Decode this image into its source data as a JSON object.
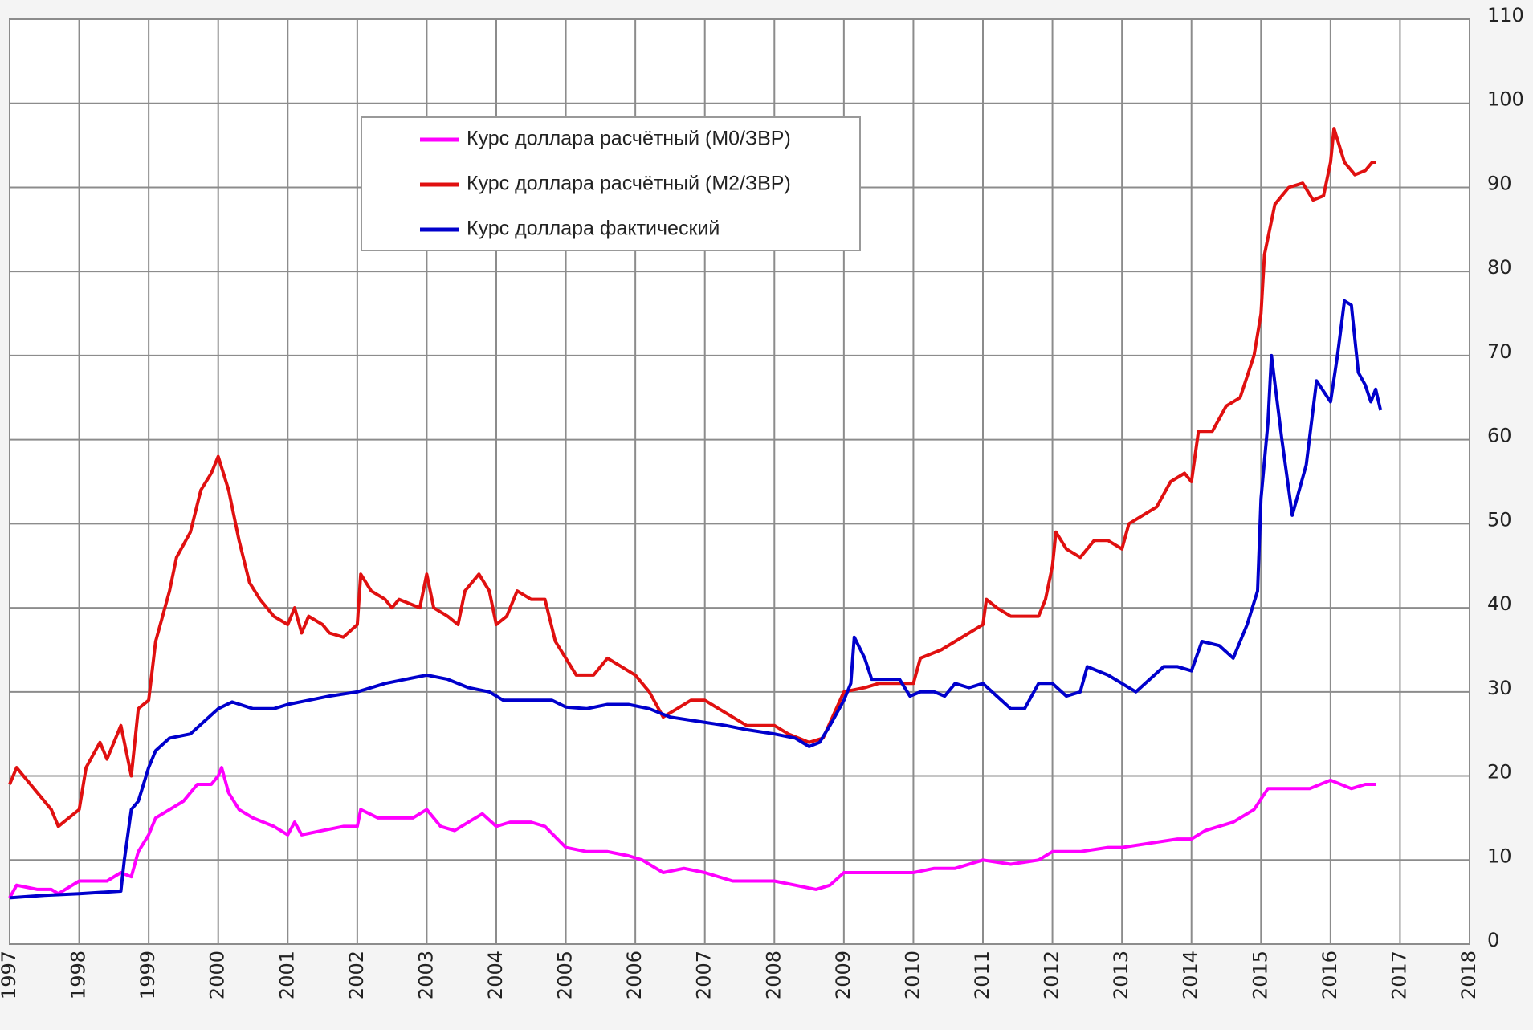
{
  "chart_data": {
    "type": "line",
    "grid": true,
    "y_axis_side": "right",
    "xlim": [
      1997,
      2018
    ],
    "xticks": [
      1997,
      1998,
      1999,
      2000,
      2001,
      2002,
      2003,
      2004,
      2005,
      2006,
      2007,
      2008,
      2009,
      2010,
      2011,
      2012,
      2013,
      2014,
      2015,
      2016,
      2017,
      2018
    ],
    "ylim": [
      0,
      110
    ],
    "yticks": [
      0,
      10,
      20,
      30,
      40,
      50,
      60,
      70,
      80,
      90,
      100,
      110
    ],
    "series": [
      {
        "name": "Курс доллара расчётный (М0/ЗВР)",
        "color": "#ff00ff",
        "x": [
          1997.0,
          1997.1,
          1997.4,
          1997.6,
          1997.7,
          1998.0,
          1998.2,
          1998.4,
          1998.6,
          1998.75,
          1998.85,
          1999.0,
          1999.1,
          1999.3,
          1999.5,
          1999.7,
          1999.9,
          2000.0,
          2000.05,
          2000.15,
          2000.3,
          2000.5,
          2000.8,
          2001.0,
          2001.1,
          2001.2,
          2001.5,
          2001.8,
          2002.0,
          2002.05,
          2002.3,
          2002.5,
          2002.8,
          2003.0,
          2003.2,
          2003.4,
          2003.6,
          2003.8,
          2004.0,
          2004.2,
          2004.5,
          2004.7,
          2005.0,
          2005.3,
          2005.6,
          2005.9,
          2006.1,
          2006.4,
          2006.7,
          2007.0,
          2007.4,
          2007.7,
          2008.0,
          2008.3,
          2008.6,
          2008.8,
          2009.0,
          2009.4,
          2009.7,
          2010.0,
          2010.3,
          2010.6,
          2011.0,
          2011.4,
          2011.8,
          2012.0,
          2012.4,
          2012.8,
          2013.0,
          2013.4,
          2013.8,
          2014.0,
          2014.2,
          2014.6,
          2014.9,
          2015.1,
          2015.4,
          2015.7,
          2016.0,
          2016.3,
          2016.5,
          2016.65
        ],
        "values": [
          5.5,
          7,
          6.5,
          6.5,
          6,
          7.5,
          7.5,
          7.5,
          8.5,
          8,
          11,
          13,
          15,
          16,
          17,
          19,
          19,
          20,
          21,
          18,
          16,
          15,
          14,
          13,
          14.5,
          13,
          13.5,
          14,
          14,
          16,
          15,
          15,
          15,
          16,
          14,
          13.5,
          14.5,
          15.5,
          14,
          14.5,
          14.5,
          14,
          11.5,
          11,
          11,
          10.5,
          10,
          8.5,
          9,
          8.5,
          7.5,
          7.5,
          7.5,
          7,
          6.5,
          7,
          8.5,
          8.5,
          8.5,
          8.5,
          9,
          9,
          10,
          9.5,
          10,
          11,
          11,
          11.5,
          11.5,
          12,
          12.5,
          12.5,
          13.5,
          14.5,
          16,
          18.5,
          18.5,
          18.5,
          19.5,
          18.5,
          19,
          19
        ]
      },
      {
        "name": "Курс доллара расчётный (М2/ЗВР)",
        "color": "#e01010",
        "x": [
          1997.0,
          1997.1,
          1997.4,
          1997.6,
          1997.7,
          1998.0,
          1998.1,
          1998.3,
          1998.4,
          1998.6,
          1998.75,
          1998.85,
          1999.0,
          1999.1,
          1999.3,
          1999.4,
          1999.6,
          1999.75,
          1999.9,
          2000.0,
          2000.15,
          2000.3,
          2000.45,
          2000.6,
          2000.8,
          2001.0,
          2001.1,
          2001.2,
          2001.3,
          2001.5,
          2001.6,
          2001.8,
          2002.0,
          2002.05,
          2002.2,
          2002.4,
          2002.5,
          2002.6,
          2002.9,
          2003.0,
          2003.1,
          2003.3,
          2003.45,
          2003.55,
          2003.75,
          2003.9,
          2004.0,
          2004.15,
          2004.3,
          2004.5,
          2004.7,
          2004.85,
          2005.0,
          2005.15,
          2005.4,
          2005.6,
          2005.8,
          2006.0,
          2006.2,
          2006.4,
          2006.6,
          2006.8,
          2007.0,
          2007.2,
          2007.4,
          2007.6,
          2007.8,
          2008.0,
          2008.2,
          2008.5,
          2008.7,
          2009.0,
          2009.3,
          2009.5,
          2009.8,
          2010.0,
          2010.1,
          2010.4,
          2010.6,
          2010.8,
          2011.0,
          2011.05,
          2011.2,
          2011.4,
          2011.6,
          2011.8,
          2011.9,
          2012.0,
          2012.05,
          2012.2,
          2012.4,
          2012.6,
          2012.8,
          2013.0,
          2013.1,
          2013.3,
          2013.5,
          2013.7,
          2013.9,
          2014.0,
          2014.1,
          2014.3,
          2014.5,
          2014.7,
          2014.9,
          2015.0,
          2015.05,
          2015.2,
          2015.4,
          2015.6,
          2015.75,
          2015.9,
          2016.0,
          2016.05,
          2016.2,
          2016.35,
          2016.5,
          2016.6,
          2016.65
        ],
        "values": [
          19,
          21,
          18,
          16,
          14,
          16,
          21,
          24,
          22,
          26,
          20,
          28,
          29,
          36,
          42,
          46,
          49,
          54,
          56,
          58,
          54,
          48,
          43,
          41,
          39,
          38,
          40,
          37,
          39,
          38,
          37,
          36.5,
          38,
          44,
          42,
          41,
          40,
          41,
          40,
          44,
          40,
          39,
          38,
          42,
          44,
          42,
          38,
          39,
          42,
          41,
          41,
          36,
          34,
          32,
          32,
          34,
          33,
          32,
          30,
          27,
          28,
          29,
          29,
          28,
          27,
          26,
          26,
          26,
          25,
          24,
          24.5,
          30,
          30.5,
          31,
          31,
          31,
          34,
          35,
          36,
          37,
          38,
          41,
          40,
          39,
          39,
          39,
          41,
          45,
          49,
          47,
          46,
          48,
          48,
          47,
          50,
          51,
          52,
          55,
          56,
          55,
          61,
          61,
          64,
          65,
          70,
          75,
          82,
          88,
          90,
          90.5,
          88.5,
          89,
          93,
          97,
          93,
          91.5,
          92,
          93,
          93
        ]
      },
      {
        "name": "Курс доллара фактический",
        "color": "#0000cc",
        "x": [
          1997.0,
          1997.5,
          1998.0,
          1998.4,
          1998.6,
          1998.65,
          1998.75,
          1998.85,
          1999.0,
          1999.1,
          1999.3,
          1999.6,
          1999.8,
          2000.0,
          2000.2,
          2000.5,
          2000.8,
          2001.0,
          2001.3,
          2001.6,
          2002.0,
          2002.4,
          2002.7,
          2003.0,
          2003.3,
          2003.6,
          2003.9,
          2004.1,
          2004.5,
          2004.8,
          2005.0,
          2005.3,
          2005.6,
          2005.9,
          2006.2,
          2006.5,
          2006.9,
          2007.3,
          2007.6,
          2008.0,
          2008.3,
          2008.5,
          2008.65,
          2008.8,
          2009.0,
          2009.1,
          2009.15,
          2009.3,
          2009.4,
          2009.6,
          2009.8,
          2009.95,
          2010.1,
          2010.3,
          2010.45,
          2010.6,
          2010.8,
          2011.0,
          2011.2,
          2011.4,
          2011.6,
          2011.8,
          2012.0,
          2012.2,
          2012.4,
          2012.5,
          2012.8,
          2013.0,
          2013.2,
          2013.4,
          2013.6,
          2013.8,
          2014.0,
          2014.15,
          2014.4,
          2014.6,
          2014.8,
          2014.95,
          2015.0,
          2015.1,
          2015.15,
          2015.3,
          2015.45,
          2015.65,
          2015.8,
          2016.0,
          2016.1,
          2016.2,
          2016.3,
          2016.4,
          2016.5,
          2016.58,
          2016.65,
          2016.72
        ],
        "values": [
          5.5,
          5.8,
          6,
          6.2,
          6.3,
          10,
          16,
          17,
          21,
          23,
          24.5,
          25,
          26.5,
          28,
          28.8,
          28,
          28,
          28.5,
          29,
          29.5,
          30,
          31,
          31.5,
          32,
          31.5,
          30.5,
          30,
          29,
          29,
          29,
          28.2,
          28,
          28.5,
          28.5,
          28,
          27,
          26.5,
          26,
          25.5,
          25,
          24.5,
          23.5,
          24,
          26,
          29,
          31,
          36.5,
          34,
          31.5,
          31.5,
          31.5,
          29.5,
          30,
          30,
          29.5,
          31,
          30.5,
          31,
          29.5,
          28,
          28,
          31,
          31,
          29.5,
          30,
          33,
          32,
          31,
          30,
          31.5,
          33,
          33,
          32.5,
          36,
          35.5,
          34,
          38,
          42,
          53,
          62,
          70,
          60,
          51,
          57,
          67,
          64.5,
          70,
          76.5,
          76,
          68,
          66.5,
          64.5,
          66,
          63.5
        ]
      }
    ]
  }
}
